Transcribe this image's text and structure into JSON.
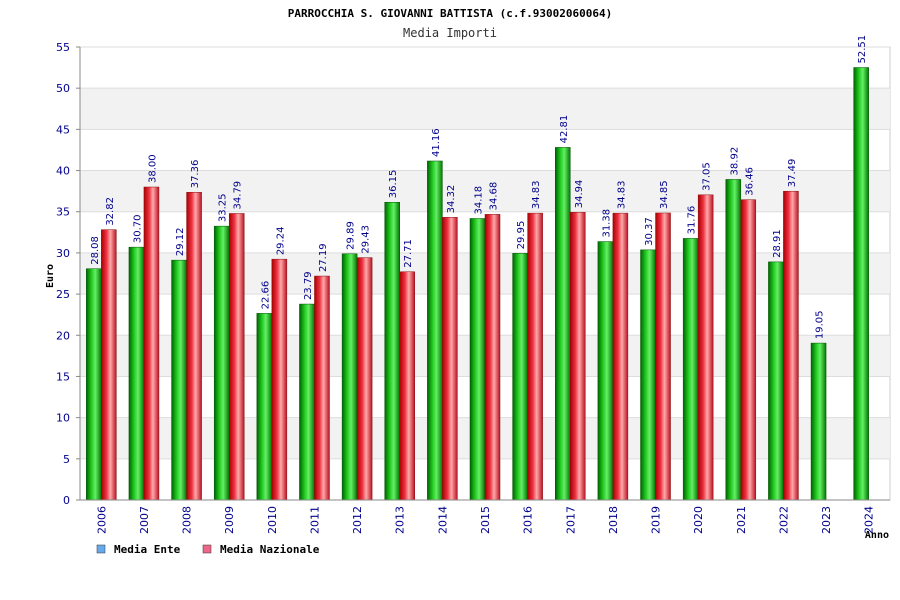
{
  "chart_data": {
    "type": "bar",
    "title": "PARROCCHIA S. GIOVANNI BATTISTA (c.f.93002060064)",
    "subtitle": "Media Importi",
    "xlabel": "Anno",
    "ylabel": "Euro",
    "ylim": [
      0,
      55
    ],
    "yticks": [
      "0",
      "5",
      "10",
      "15",
      "20",
      "25",
      "30",
      "35",
      "40",
      "45",
      "50",
      "55"
    ],
    "categories": [
      "2006",
      "2007",
      "2008",
      "2009",
      "2010",
      "2011",
      "2012",
      "2013",
      "2014",
      "2015",
      "2016",
      "2017",
      "2018",
      "2019",
      "2020",
      "2021",
      "2022",
      "2023",
      "2024"
    ],
    "series": [
      {
        "name": "Media Ente",
        "color": "#00aa00",
        "values": [
          28.08,
          30.7,
          29.12,
          33.25,
          22.66,
          23.79,
          29.89,
          36.15,
          41.16,
          34.18,
          29.95,
          42.81,
          31.38,
          30.37,
          31.76,
          38.92,
          28.91,
          19.05,
          52.51
        ],
        "labels": [
          "28.08",
          "30.70",
          "29.12",
          "33.25",
          "22.66",
          "23.79",
          "29.89",
          "36.15",
          "41.16",
          "34.18",
          "29.95",
          "42.81",
          "31.38",
          "30.37",
          "31.76",
          "38.92",
          "28.91",
          "19.05",
          "52.51"
        ]
      },
      {
        "name": "Media Nazionale",
        "color": "#dd2233",
        "values": [
          32.82,
          38.0,
          37.36,
          34.79,
          29.24,
          27.19,
          29.43,
          27.71,
          34.32,
          34.68,
          34.83,
          34.94,
          34.83,
          34.85,
          37.05,
          36.46,
          37.49,
          null,
          null
        ],
        "labels": [
          "32.82",
          "38.00",
          "37.36",
          "34.79",
          "29.24",
          "27.19",
          "29.43",
          "27.71",
          "34.32",
          "34.68",
          "34.83",
          "34.94",
          "34.83",
          "34.85",
          "37.05",
          "36.46",
          "37.49",
          null,
          null
        ]
      }
    ],
    "legend": [
      {
        "label": "Media Ente",
        "color": "#66aaee"
      },
      {
        "label": "Media Nazionale",
        "color": "#ee6688"
      }
    ],
    "grid": true,
    "legend_position": "bottom-left"
  }
}
